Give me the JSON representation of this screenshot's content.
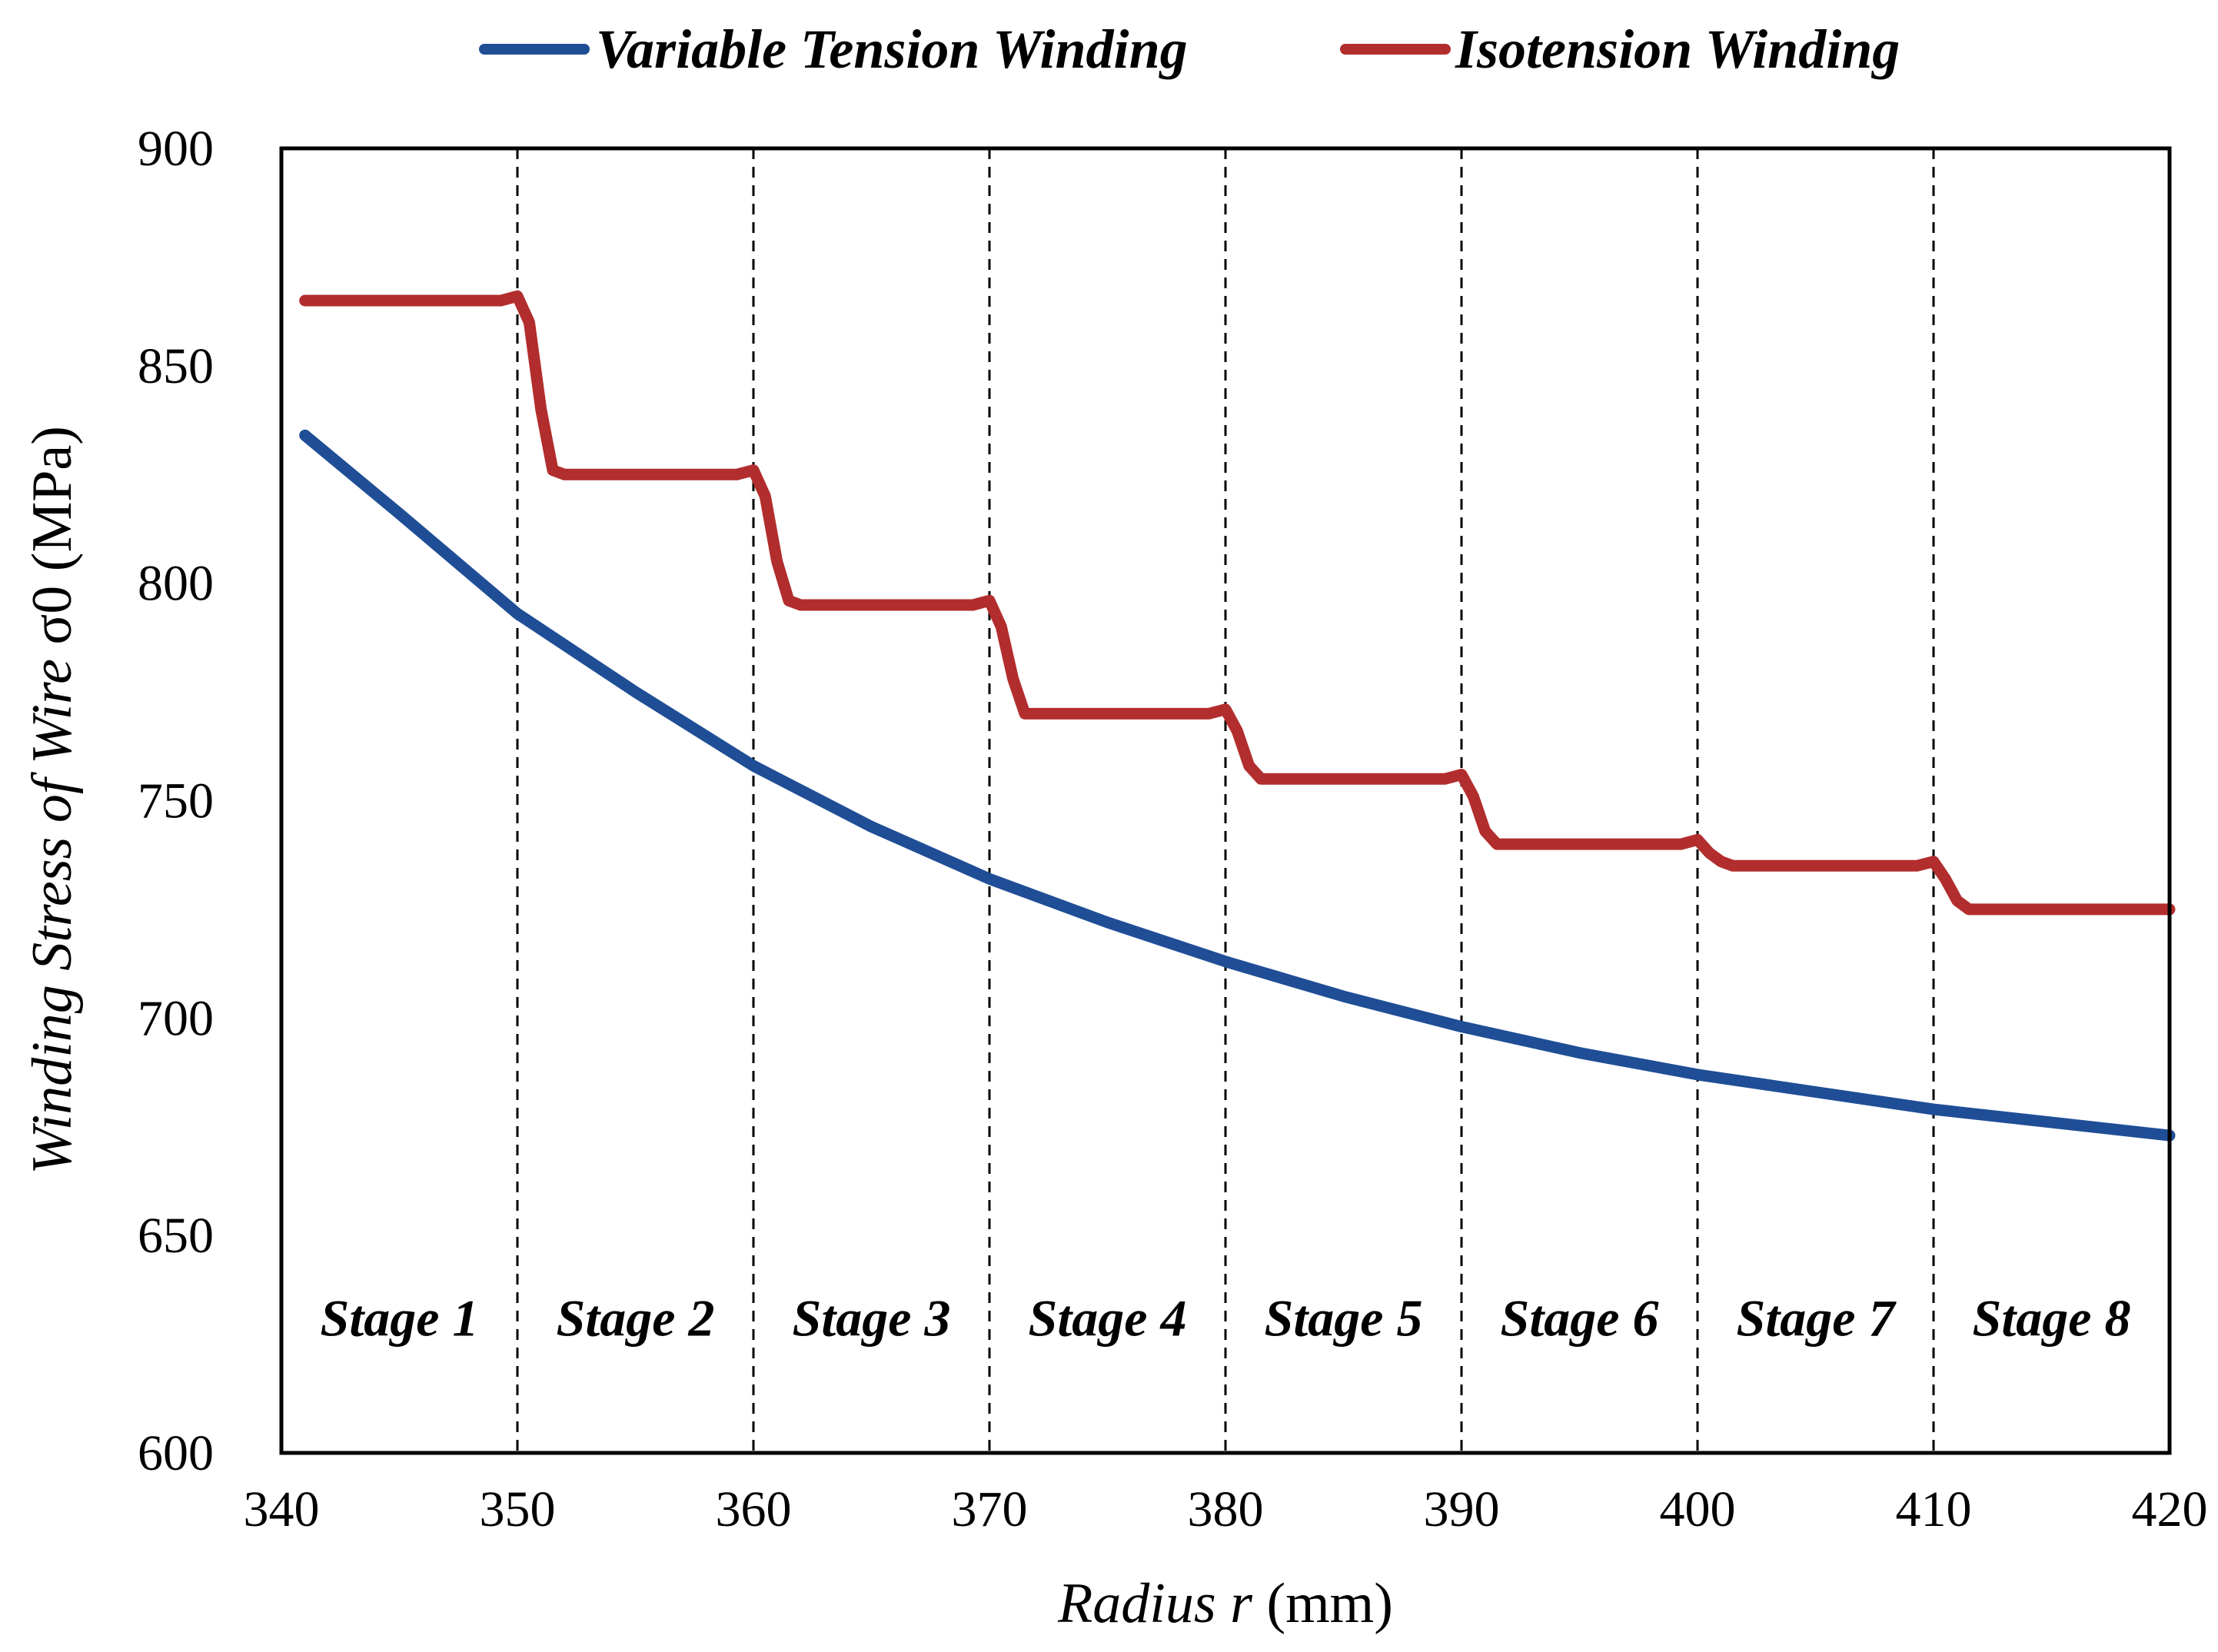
{
  "chart_data": {
    "type": "line",
    "title": "",
    "xlabel": {
      "italic": "Radius r",
      "unit": " (mm)"
    },
    "ylabel": {
      "italic": "Winding Stress of Wire",
      "symbol": " σ0",
      "unit": " (MPa)"
    },
    "xlim": [
      340,
      420
    ],
    "ylim": [
      600,
      900
    ],
    "x_ticks": [
      340,
      350,
      360,
      370,
      380,
      390,
      400,
      410,
      420
    ],
    "y_ticks": [
      600,
      650,
      700,
      750,
      800,
      850,
      900
    ],
    "grid": false,
    "stage_boundaries": [
      350,
      360,
      370,
      380,
      390,
      400,
      410
    ],
    "stages": [
      {
        "label": "Stage 1",
        "x_start": 340,
        "x_end": 350
      },
      {
        "label": "Stage 2",
        "x_start": 350,
        "x_end": 360
      },
      {
        "label": "Stage 3",
        "x_start": 360,
        "x_end": 370
      },
      {
        "label": "Stage 4",
        "x_start": 370,
        "x_end": 380
      },
      {
        "label": "Stage 5",
        "x_start": 380,
        "x_end": 390
      },
      {
        "label": "Stage 6",
        "x_start": 390,
        "x_end": 400
      },
      {
        "label": "Stage 7",
        "x_start": 400,
        "x_end": 410
      },
      {
        "label": "Stage 8",
        "x_start": 410,
        "x_end": 420
      }
    ],
    "legend_position": "top",
    "series": [
      {
        "name": "Variable Tension Winding",
        "color": "#1f4e96",
        "x": [
          341,
          345,
          350,
          355,
          360,
          365,
          370,
          375,
          380,
          385,
          390,
          395,
          400,
          405,
          410,
          415,
          420
        ],
        "y": [
          834,
          816,
          793,
          775,
          758,
          744,
          732,
          722,
          713,
          705,
          698,
          692,
          687,
          683,
          679,
          676,
          673
        ]
      },
      {
        "name": "Isotension Winding",
        "color": "#b22d2d",
        "x": [
          341,
          349.3,
          350,
          350.5,
          351,
          351.5,
          352,
          359.3,
          360,
          360.5,
          361,
          361.5,
          362,
          369.3,
          370,
          370.5,
          371,
          371.5,
          372,
          379.3,
          380,
          380.5,
          381,
          381.5,
          382,
          389.3,
          390,
          390.5,
          391,
          391.5,
          392,
          399.3,
          400,
          400.5,
          401,
          401.5,
          402,
          409.3,
          410,
          410.5,
          411,
          411.5,
          412,
          420
        ],
        "y": [
          865,
          865,
          866,
          860,
          840,
          826,
          825,
          825,
          826,
          820,
          805,
          796,
          795,
          795,
          796,
          790,
          778,
          770,
          770,
          770,
          771,
          766,
          758,
          755,
          755,
          755,
          756,
          751,
          743,
          740,
          740,
          740,
          741,
          738,
          736,
          735,
          735,
          735,
          736,
          732,
          727,
          725,
          725,
          725
        ]
      }
    ]
  }
}
